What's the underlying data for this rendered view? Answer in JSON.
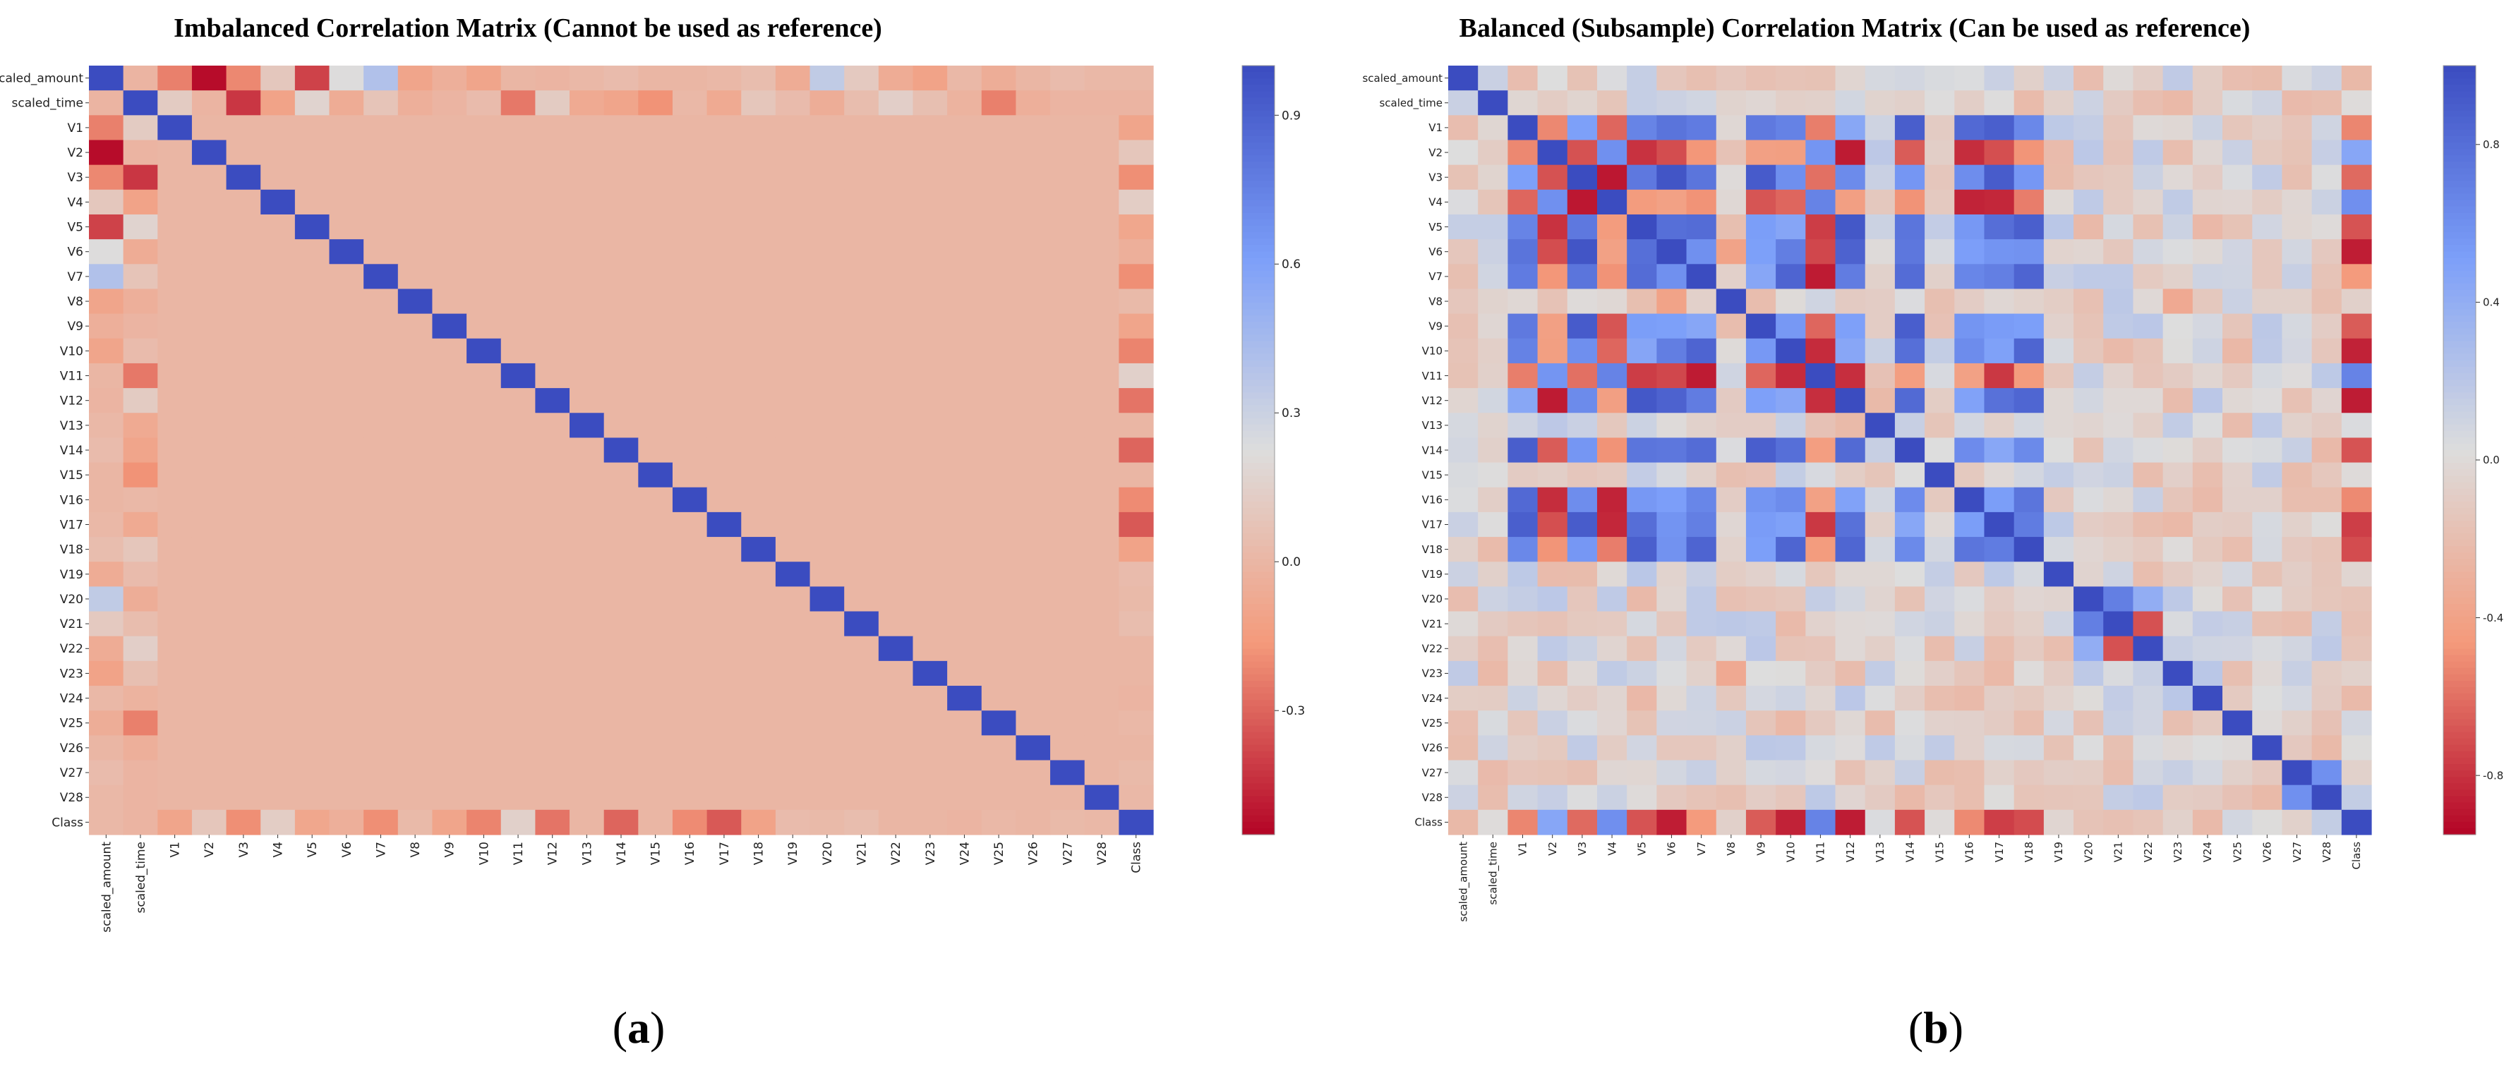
{
  "panel_labels": [
    "a",
    "b"
  ],
  "chart_data": [
    {
      "type": "heatmap",
      "title": "Imbalanced Correlation Matrix (Cannot be used as reference)",
      "labels": [
        "scaled_amount",
        "scaled_time",
        "V1",
        "V2",
        "V3",
        "V4",
        "V5",
        "V6",
        "V7",
        "V8",
        "V9",
        "V10",
        "V11",
        "V12",
        "V13",
        "V14",
        "V15",
        "V16",
        "V17",
        "V18",
        "V19",
        "V20",
        "V21",
        "V22",
        "V23",
        "V24",
        "V25",
        "V26",
        "V27",
        "V28",
        "Class"
      ],
      "colorbar_ticks": [
        0.9,
        0.6,
        0.3,
        0.0,
        -0.3
      ],
      "value_range": [
        -0.55,
        1.0
      ],
      "colormap": "coolwarm",
      "background_value": 0.0,
      "diagonal": 1.0,
      "special_rows": {
        "scaled_amount": [
          1,
          -0.01,
          -0.23,
          -0.53,
          -0.21,
          0.1,
          -0.39,
          0.22,
          0.4,
          -0.1,
          -0.04,
          -0.1,
          0.0,
          -0.01,
          0.01,
          0.03,
          -0.0,
          -0.0,
          0.01,
          0.04,
          -0.06,
          0.34,
          0.11,
          -0.06,
          -0.11,
          0.01,
          -0.05,
          -0.0,
          0.03,
          0.01,
          0.01
        ],
        "scaled_time": [
          -0.01,
          1,
          0.12,
          -0.01,
          -0.42,
          -0.11,
          0.17,
          -0.06,
          0.08,
          -0.04,
          -0.01,
          0.03,
          -0.25,
          0.12,
          -0.07,
          -0.1,
          -0.18,
          0.01,
          -0.07,
          0.09,
          0.03,
          -0.05,
          0.04,
          0.14,
          0.05,
          -0.02,
          -0.23,
          -0.04,
          -0.01,
          -0.01,
          -0.01
        ],
        "Class": [
          0.01,
          -0.01,
          -0.1,
          0.09,
          -0.19,
          0.13,
          -0.09,
          -0.04,
          -0.19,
          0.02,
          -0.1,
          -0.22,
          0.15,
          -0.26,
          -0.0,
          -0.3,
          -0.0,
          -0.2,
          -0.33,
          -0.11,
          0.03,
          0.02,
          0.04,
          0.0,
          -0.0,
          -0.01,
          0.01,
          0.0,
          0.02,
          0.01,
          1
        ]
      }
    },
    {
      "type": "heatmap",
      "title": "Balanced (Subsample) Correlation Matrix (Can be used as reference)",
      "labels": [
        "scaled_amount",
        "scaled_time",
        "V1",
        "V2",
        "V3",
        "V4",
        "V5",
        "V6",
        "V7",
        "V8",
        "V9",
        "V10",
        "V11",
        "V12",
        "V13",
        "V14",
        "V15",
        "V16",
        "V17",
        "V18",
        "V19",
        "V20",
        "V21",
        "V22",
        "V23",
        "V24",
        "V25",
        "V26",
        "V27",
        "V28",
        "Class"
      ],
      "colorbar_ticks": [
        0.8,
        0.4,
        0.0,
        -0.4,
        -0.8
      ],
      "value_range": [
        -0.95,
        1.0
      ],
      "colormap": "coolwarm",
      "group_a": [
        "V1",
        "V3",
        "V5",
        "V6",
        "V7",
        "V9",
        "V10",
        "V12",
        "V14",
        "V16",
        "V17",
        "V18"
      ],
      "group_b": [
        "V2",
        "V4",
        "V11",
        "Class"
      ],
      "group_a_corr": 0.7,
      "group_b_corr": 0.55,
      "cross_corr": -0.65,
      "pairs": [
        {
          "a": "V20",
          "b": "V21",
          "v": 0.7
        },
        {
          "a": "V21",
          "b": "V22",
          "v": -0.7
        },
        {
          "a": "V20",
          "b": "V22",
          "v": 0.4
        },
        {
          "a": "V27",
          "b": "V28",
          "v": 0.6
        },
        {
          "a": "V6",
          "b": "V8",
          "v": -0.4
        },
        {
          "a": "V23",
          "b": "V8",
          "v": -0.35
        }
      ]
    }
  ]
}
